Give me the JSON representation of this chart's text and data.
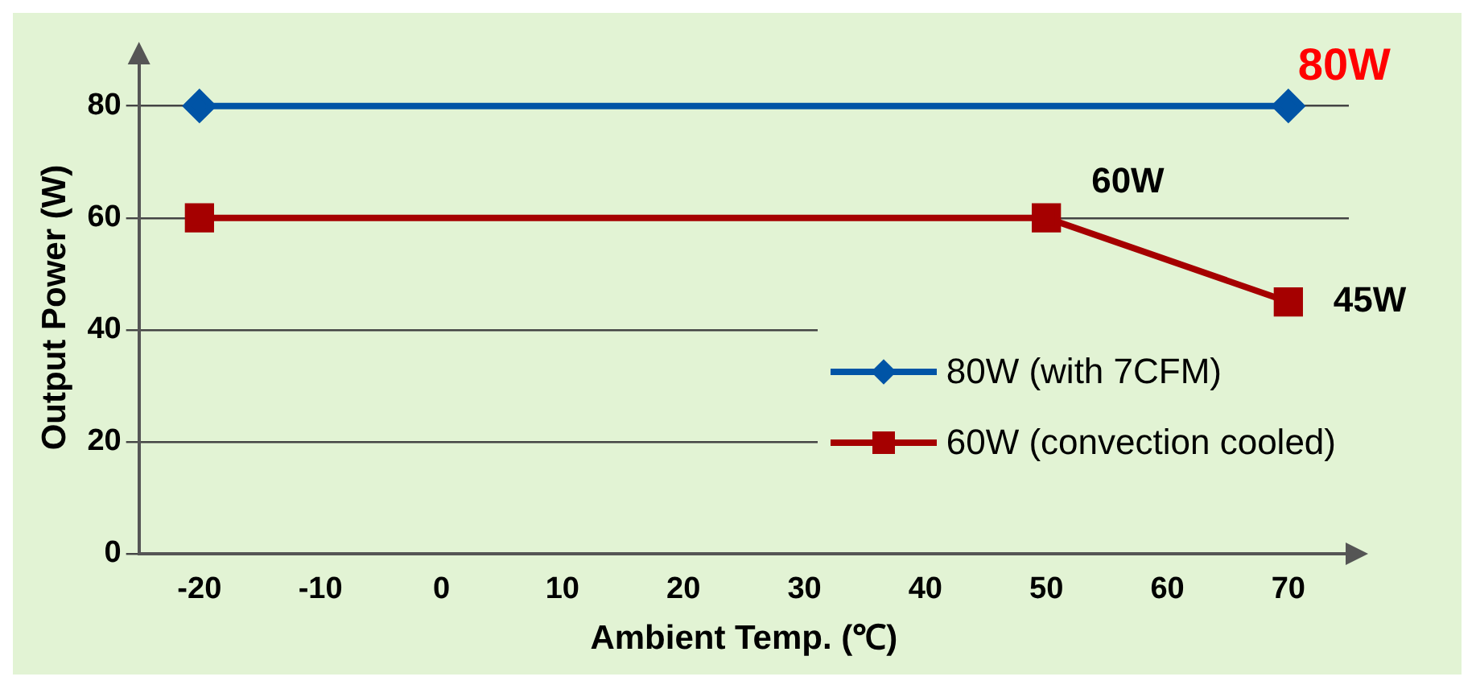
{
  "chart_data": {
    "type": "line",
    "xlabel": "Ambient Temp. (℃)",
    "ylabel": "Output Power (W)",
    "xlim": [
      -25,
      75
    ],
    "xticks": [
      -20,
      -10,
      0,
      10,
      20,
      30,
      40,
      50,
      60,
      70
    ],
    "ylim": [
      0,
      88
    ],
    "yticks": [
      0,
      20,
      40,
      60,
      80
    ],
    "grid": "y",
    "legend": "bottom right",
    "series": [
      {
        "name": "80W (with 7CFM)",
        "color": "#0054a6",
        "marker": "diamond",
        "x": [
          -20,
          70
        ],
        "values": [
          80,
          80
        ],
        "value_labels": [
          null,
          "80W"
        ]
      },
      {
        "name": "60W (convection cooled)",
        "color": "#a50000",
        "marker": "square",
        "x": [
          -20,
          50,
          70
        ],
        "values": [
          60,
          60,
          45
        ],
        "value_labels": [
          null,
          "60W",
          "45W"
        ]
      }
    ]
  }
}
